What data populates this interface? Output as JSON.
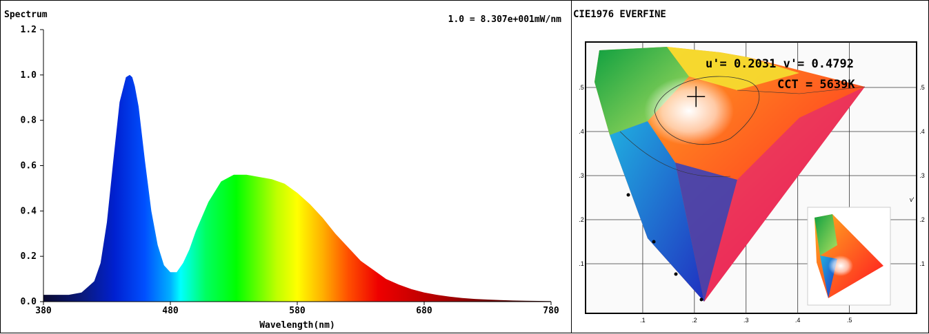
{
  "spectrum": {
    "title": "Spectrum",
    "scale_note": "1.0 = 8.307e+001mW/nm"
  },
  "chart_data": [
    {
      "type": "area",
      "title": "Spectrum",
      "xlabel": "Wavelength(nm)",
      "ylabel": "",
      "xlim": [
        380,
        780
      ],
      "ylim": [
        0,
        1.2
      ],
      "x_ticks": [
        "380",
        "480",
        "580",
        "680",
        "780"
      ],
      "y_ticks": [
        "0.0",
        "0.2",
        "0.4",
        "0.6",
        "0.8",
        "1.0",
        "1.2"
      ],
      "fill": "wavelength-colored gradient",
      "series": [
        {
          "x": [
            380,
            390,
            400,
            410,
            420,
            425,
            430,
            435,
            440,
            445,
            448,
            450,
            452,
            455,
            460,
            465,
            470,
            475,
            480,
            485,
            490,
            495,
            500,
            510,
            520,
            530,
            540,
            550,
            560,
            570,
            580,
            590,
            600,
            610,
            620,
            630,
            640,
            650,
            660,
            670,
            680,
            690,
            700,
            710,
            720,
            730,
            740,
            750,
            760,
            770,
            780
          ],
          "values": [
            0.03,
            0.03,
            0.03,
            0.04,
            0.09,
            0.17,
            0.35,
            0.62,
            0.88,
            0.99,
            1.0,
            0.99,
            0.95,
            0.86,
            0.62,
            0.4,
            0.25,
            0.16,
            0.13,
            0.13,
            0.17,
            0.23,
            0.31,
            0.44,
            0.53,
            0.56,
            0.56,
            0.55,
            0.54,
            0.52,
            0.48,
            0.43,
            0.37,
            0.3,
            0.24,
            0.18,
            0.14,
            0.1,
            0.075,
            0.055,
            0.04,
            0.03,
            0.022,
            0.016,
            0.012,
            0.009,
            0.007,
            0.005,
            0.004,
            0.003,
            0.002
          ]
        }
      ]
    },
    {
      "type": "scatter",
      "title": "CIE1976 EVERFINE",
      "annotation_uv": "u'= 0.2031 v'= 0.4792",
      "annotation_cct": "CCT = 5639K",
      "marker": {
        "u": 0.2031,
        "v": 0.4792
      },
      "x_ticks": [
        ".1",
        ".2",
        ".3",
        ".4",
        ".5"
      ],
      "y_ticks": [
        ".1",
        ".2",
        ".3",
        ".4",
        ".5"
      ],
      "y_axis_label": "v'",
      "xlim": [
        0,
        0.63
      ],
      "ylim": [
        0,
        0.6
      ]
    }
  ]
}
